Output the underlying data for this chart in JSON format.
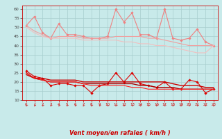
{
  "x": [
    0,
    1,
    2,
    3,
    4,
    5,
    6,
    7,
    8,
    9,
    10,
    11,
    12,
    13,
    14,
    15,
    16,
    17,
    18,
    19,
    20,
    21,
    22,
    23
  ],
  "series": [
    {
      "name": "rafales_volatile",
      "color": "#f08080",
      "lw": 0.8,
      "marker": "D",
      "ms": 1.8,
      "values": [
        51,
        56,
        47,
        44,
        52,
        46,
        46,
        45,
        44,
        44,
        45,
        60,
        53,
        58,
        46,
        46,
        44,
        60,
        44,
        43,
        44,
        49,
        42,
        40
      ]
    },
    {
      "name": "rafales_smooth1",
      "color": "#f0a0a0",
      "lw": 0.8,
      "marker": null,
      "ms": 0,
      "values": [
        51,
        48,
        46,
        44,
        45,
        45,
        45,
        44,
        44,
        44,
        44,
        45,
        45,
        45,
        45,
        44,
        44,
        43,
        42,
        41,
        40,
        40,
        40,
        40
      ]
    },
    {
      "name": "rafales_smooth2",
      "color": "#f0c0c0",
      "lw": 0.8,
      "marker": null,
      "ms": 0,
      "values": [
        50,
        47,
        45,
        44,
        44,
        44,
        44,
        43,
        43,
        43,
        43,
        43,
        42,
        42,
        41,
        41,
        40,
        40,
        39,
        38,
        37,
        36,
        36,
        40
      ]
    },
    {
      "name": "vent_volatile",
      "color": "#dd0000",
      "lw": 0.8,
      "marker": "D",
      "ms": 1.8,
      "values": [
        26,
        23,
        22,
        18,
        19,
        19,
        18,
        18,
        14,
        18,
        19,
        25,
        20,
        25,
        19,
        18,
        17,
        20,
        16,
        16,
        21,
        20,
        14,
        16
      ]
    },
    {
      "name": "vent_smooth1",
      "color": "#cc0000",
      "lw": 1.0,
      "marker": null,
      "ms": 0,
      "values": [
        24,
        22,
        22,
        21,
        21,
        21,
        21,
        20,
        20,
        20,
        20,
        20,
        20,
        20,
        20,
        20,
        20,
        20,
        19,
        18,
        18,
        18,
        17,
        17
      ]
    },
    {
      "name": "vent_smooth2",
      "color": "#aa0000",
      "lw": 1.0,
      "marker": null,
      "ms": 0,
      "values": [
        25,
        22,
        21,
        20,
        20,
        20,
        20,
        19,
        19,
        19,
        19,
        19,
        19,
        19,
        18,
        18,
        17,
        17,
        17,
        16,
        16,
        16,
        16,
        16
      ]
    },
    {
      "name": "vent_smooth3",
      "color": "#ff2222",
      "lw": 0.8,
      "marker": null,
      "ms": 0,
      "values": [
        25,
        22,
        21,
        20,
        20,
        20,
        20,
        19,
        18,
        18,
        18,
        18,
        18,
        17,
        17,
        16,
        16,
        16,
        16,
        16,
        16,
        16,
        16,
        16
      ]
    }
  ],
  "xlabel": "Vent moyen/en rafales ( km/h )",
  "ylim": [
    10,
    62
  ],
  "yticks": [
    10,
    15,
    20,
    25,
    30,
    35,
    40,
    45,
    50,
    55,
    60
  ],
  "xticks": [
    0,
    1,
    2,
    3,
    4,
    5,
    6,
    7,
    8,
    9,
    10,
    11,
    12,
    13,
    14,
    15,
    16,
    17,
    18,
    19,
    20,
    21,
    22,
    23
  ],
  "bg_color": "#c8eaea",
  "grid_color": "#a8cece",
  "arrow_color": "#cc4444",
  "label_color": "#cc0000",
  "ytick_color": "#444444"
}
